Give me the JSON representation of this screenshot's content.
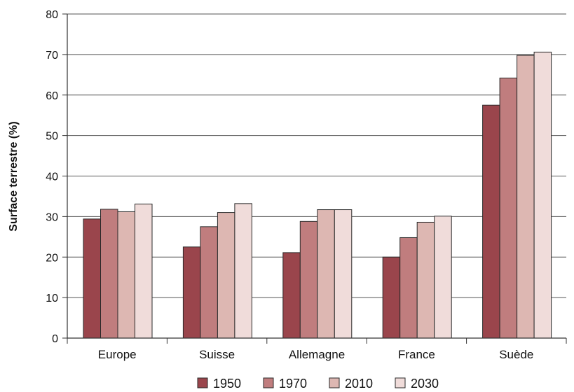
{
  "chart_data": {
    "type": "bar",
    "title": "",
    "xlabel": "",
    "ylabel": "Surface terrestre (%)",
    "ylim": [
      0,
      80
    ],
    "yticks": [
      0,
      10,
      20,
      30,
      40,
      50,
      60,
      70,
      80
    ],
    "grid": true,
    "legend_position": "bottom",
    "categories": [
      "Europe",
      "Suisse",
      "Allemagne",
      "France",
      "Suède"
    ],
    "series": [
      {
        "name": "1950",
        "color": "#9a454c",
        "values": [
          29.4,
          22.5,
          21.1,
          20.0,
          57.5
        ]
      },
      {
        "name": "1970",
        "color": "#c07d7e",
        "values": [
          31.8,
          27.5,
          28.8,
          24.8,
          64.2
        ]
      },
      {
        "name": "2010",
        "color": "#ddb7b2",
        "values": [
          31.2,
          31.0,
          31.7,
          28.6,
          69.8
        ]
      },
      {
        "name": "2030",
        "color": "#f0dcda",
        "values": [
          33.1,
          33.2,
          31.7,
          30.1,
          70.6
        ]
      }
    ]
  }
}
